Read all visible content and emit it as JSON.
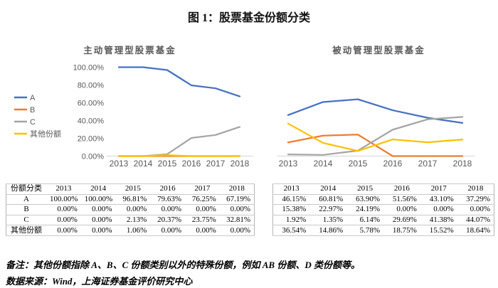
{
  "page": {
    "title": "图 1：股票基金份额分类"
  },
  "chart_data": [
    {
      "type": "line",
      "title": "主动管理型股票基金",
      "categories": [
        "2013",
        "2014",
        "2015",
        "2016",
        "2017",
        "2018"
      ],
      "series": [
        {
          "name": "A",
          "color": "#4472C4",
          "values": [
            100.0,
            100.0,
            96.81,
            79.63,
            76.25,
            67.19
          ]
        },
        {
          "name": "B",
          "color": "#ED7D31",
          "values": [
            0.0,
            0.0,
            0.0,
            0.0,
            0.0,
            0.0
          ]
        },
        {
          "name": "C",
          "color": "#A5A5A5",
          "values": [
            0.0,
            0.0,
            2.13,
            20.37,
            23.75,
            32.81
          ]
        },
        {
          "name": "其他份额",
          "color": "#FFC000",
          "values": [
            0.0,
            0.0,
            1.06,
            0.0,
            0.0,
            0.0
          ]
        }
      ],
      "ylim": [
        0,
        100
      ],
      "y_ticks": [
        "100.00%",
        "80.00%",
        "60.00%",
        "40.00%",
        "20.00%",
        "0.00%"
      ],
      "legend_position": "left",
      "grid": false
    },
    {
      "type": "line",
      "title": "被动管理型股票基金",
      "categories": [
        "2013",
        "2014",
        "2015",
        "2016",
        "2017",
        "2018"
      ],
      "series": [
        {
          "name": "A",
          "color": "#4472C4",
          "values": [
            46.15,
            60.81,
            63.9,
            51.56,
            43.1,
            37.29
          ]
        },
        {
          "name": "B",
          "color": "#ED7D31",
          "values": [
            15.38,
            22.97,
            24.19,
            0.0,
            0.0,
            0.0
          ]
        },
        {
          "name": "C",
          "color": "#A5A5A5",
          "values": [
            1.92,
            1.35,
            6.14,
            29.69,
            41.38,
            44.07
          ]
        },
        {
          "name": "其他份额",
          "color": "#FFC000",
          "values": [
            36.54,
            14.86,
            5.78,
            18.75,
            15.52,
            18.64
          ]
        }
      ],
      "ylim": [
        0,
        100
      ],
      "y_ticks": [],
      "legend_position": "none",
      "grid": false
    }
  ],
  "tables": [
    {
      "headers": [
        "份额分类",
        "2013",
        "2014",
        "2015",
        "2016",
        "2017",
        "2018"
      ],
      "rows": [
        [
          "A",
          "100.00%",
          "100.00%",
          "96.81%",
          "79.63%",
          "76.25%",
          "67.19%"
        ],
        [
          "B",
          "0.00%",
          "0.00%",
          "0.00%",
          "0.00%",
          "0.00%",
          "0.00%"
        ],
        [
          "C",
          "0.00%",
          "0.00%",
          "2.13%",
          "20.37%",
          "23.75%",
          "32.81%"
        ],
        [
          "其他份额",
          "0.00%",
          "0.00%",
          "1.06%",
          "0.00%",
          "0.00%",
          "0.00%"
        ]
      ]
    },
    {
      "headers": [
        "2013",
        "2014",
        "2015",
        "2016",
        "2017",
        "2018"
      ],
      "rows": [
        [
          "46.15%",
          "60.81%",
          "63.90%",
          "51.56%",
          "43.10%",
          "37.29%"
        ],
        [
          "15.38%",
          "22.97%",
          "24.19%",
          "0.00%",
          "0.00%",
          "0.00%"
        ],
        [
          "1.92%",
          "1.35%",
          "6.14%",
          "29.69%",
          "41.38%",
          "44.07%"
        ],
        [
          "36.54%",
          "14.86%",
          "5.78%",
          "18.75%",
          "15.52%",
          "18.64%"
        ]
      ]
    }
  ],
  "notes": {
    "remark": "备注：其他份额指除 A、B、C 份额类别以外的特殊份额，例如 AB 份额、D 类份额等。",
    "source": "数据来源：Wind，上海证券基金评价研究中心"
  },
  "colors": {
    "series_a": "#4472C4",
    "series_b": "#ED7D31",
    "series_c": "#A5A5A5",
    "series_other": "#FFC000",
    "axis_text": "#595959",
    "axis_line": "#D6D6D6",
    "table_border": "#C9C9C9"
  }
}
